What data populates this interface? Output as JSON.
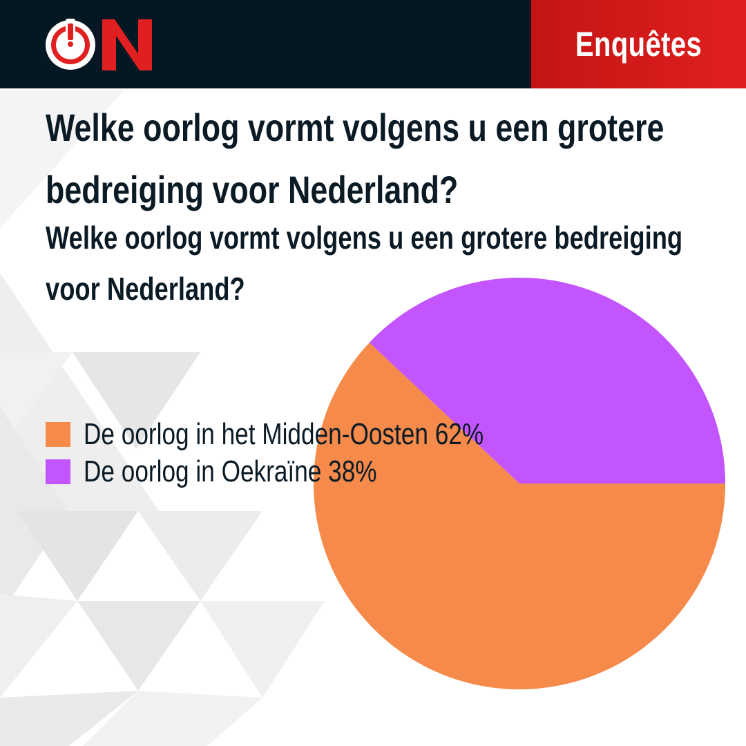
{
  "header": {
    "logo_text": "ON",
    "section_label": "Enquêtes",
    "colors": {
      "background": "#041824",
      "accent": "#e02020"
    }
  },
  "headline": "Welke oorlog vormt volgens u een grotere bedreiging voor Nederland?",
  "chart_data": {
    "type": "pie",
    "title": "Welke oorlog vormt volgens u een grotere bedreiging voor Nederland?",
    "legend_position": "left",
    "slices": [
      {
        "label": "De oorlog in het Midden-Oosten",
        "value": 62,
        "percent_label": "62%",
        "color": "#f58a4b"
      },
      {
        "label": "De oorlog in Oekraïne",
        "value": 38,
        "percent_label": "38%",
        "color": "#c355ff"
      }
    ]
  }
}
